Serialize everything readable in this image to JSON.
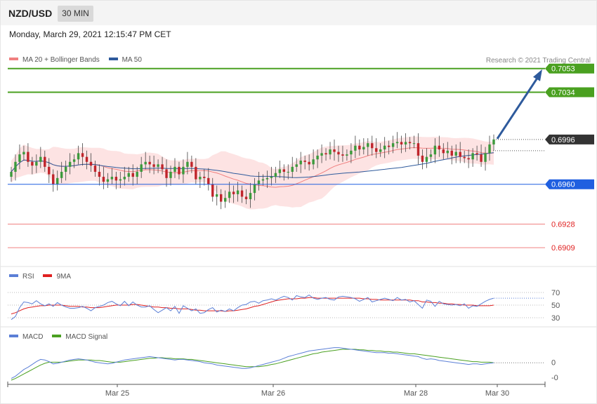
{
  "header": {
    "symbol": "NZD/USD",
    "timeframe": "30 MIN"
  },
  "datetime": "Monday, March 29, 2021 12:15:47 PM CET",
  "credit": "Research © 2021 Trading Central",
  "legends": {
    "price": [
      {
        "label": "MA 20 + Bollinger Bands",
        "color": "#f08080"
      },
      {
        "label": "MA 50",
        "color": "#2e5a9c"
      }
    ],
    "rsi": [
      {
        "label": "RSI",
        "color": "#5b7fd6"
      },
      {
        "label": "9MA",
        "color": "#e02020"
      }
    ],
    "macd": [
      {
        "label": "MACD",
        "color": "#5b7fd6"
      },
      {
        "label": "MACD Signal",
        "color": "#4aa020"
      }
    ]
  },
  "colors": {
    "up": "#3c9a3c",
    "down": "#c0242b",
    "target": "#4aa020",
    "pivot": "#1f5fe0",
    "support": "#e02020",
    "current": "#333333",
    "arrow": "#2e5a9c"
  },
  "chart_data": [
    {
      "type": "candlestick",
      "name": "price",
      "ylim": [
        0.6895,
        0.7063
      ],
      "x_ticks": [
        "Mar 25",
        "Mar 26",
        "Mar 28",
        "Mar 30"
      ],
      "levels": [
        {
          "value": 0.7053,
          "label": "0.7053",
          "role": "target"
        },
        {
          "value": 0.7034,
          "label": "0.7034",
          "role": "target"
        },
        {
          "value": 0.6996,
          "label": "0.6996",
          "role": "current"
        },
        {
          "value": 0.696,
          "label": "0.6960",
          "role": "pivot"
        },
        {
          "value": 0.6928,
          "label": "0.6928",
          "role": "support"
        },
        {
          "value": 0.6909,
          "label": "0.6909",
          "role": "support"
        }
      ],
      "arrow": {
        "from": 0.6996,
        "to": 0.7053
      },
      "close": [
        0.697,
        0.6978,
        0.6984,
        0.6986,
        0.6978,
        0.6975,
        0.6978,
        0.6982,
        0.6974,
        0.6968,
        0.696,
        0.6965,
        0.697,
        0.6974,
        0.6978,
        0.698,
        0.6985,
        0.6982,
        0.6978,
        0.6975,
        0.697,
        0.6966,
        0.6962,
        0.6964,
        0.6966,
        0.6963,
        0.6964,
        0.6966,
        0.6969,
        0.6966,
        0.697,
        0.6976,
        0.6978,
        0.6976,
        0.6974,
        0.6976,
        0.6972,
        0.6965,
        0.697,
        0.6974,
        0.6968,
        0.6974,
        0.6978,
        0.6974,
        0.6964,
        0.6966,
        0.6965,
        0.696,
        0.695,
        0.6952,
        0.6946,
        0.6949,
        0.6954,
        0.6952,
        0.6955,
        0.695,
        0.6948,
        0.6953,
        0.696,
        0.6963,
        0.6964,
        0.6965,
        0.6966,
        0.6969,
        0.6972,
        0.697,
        0.697,
        0.6974,
        0.6976,
        0.6979,
        0.6978,
        0.6976,
        0.698,
        0.6983,
        0.6985,
        0.6984,
        0.6988,
        0.6986,
        0.6984,
        0.6983,
        0.6984,
        0.6987,
        0.6991,
        0.6988,
        0.699,
        0.6993,
        0.6989,
        0.6986,
        0.6988,
        0.6991,
        0.699,
        0.6993,
        0.6994,
        0.6992,
        0.6994,
        0.6993,
        0.6993,
        0.6983,
        0.6978,
        0.6982,
        0.6984,
        0.6991,
        0.6988,
        0.6985,
        0.6987,
        0.6983,
        0.6986,
        0.6982,
        0.6981,
        0.698,
        0.6985,
        0.6984,
        0.6978,
        0.6985,
        0.6992,
        0.6996
      ]
    },
    {
      "type": "line",
      "name": "RSI",
      "ylim": [
        20,
        80
      ],
      "y_ticks": [
        "70",
        "50",
        "30"
      ],
      "reference_lines": [
        70,
        50,
        30
      ],
      "rsi": [
        27,
        32,
        46,
        55,
        54,
        52,
        57,
        52,
        49,
        52,
        48,
        54,
        50,
        47,
        45,
        45,
        46,
        48,
        45,
        41,
        46,
        48,
        50,
        54,
        56,
        52,
        49,
        56,
        49,
        55,
        50,
        47,
        47,
        49,
        43,
        38,
        42,
        46,
        41,
        48,
        37,
        49,
        45,
        41,
        44,
        37,
        38,
        43,
        46,
        39,
        42,
        40,
        44,
        41,
        46,
        50,
        51,
        55,
        56,
        53,
        57,
        58,
        60,
        58,
        61,
        64,
        62,
        58,
        65,
        63,
        62,
        66,
        61,
        59,
        61,
        62,
        59,
        58,
        63,
        64,
        63,
        62,
        60,
        56,
        59,
        62,
        55,
        57,
        59,
        61,
        59,
        57,
        62,
        58,
        59,
        55,
        57,
        51,
        45,
        58,
        56,
        48,
        56,
        52,
        51,
        50,
        51,
        49,
        52,
        45,
        49,
        48,
        52,
        56,
        59,
        61
      ],
      "rsi_ma": [
        36,
        38,
        41,
        44,
        46,
        47,
        48,
        49,
        49,
        50,
        50,
        50,
        50,
        49,
        48,
        48,
        48,
        47,
        47,
        46,
        46,
        46,
        47,
        48,
        49,
        50,
        50,
        50,
        50,
        51,
        51,
        50,
        49,
        48,
        47,
        47,
        46,
        46,
        45,
        45,
        44,
        44,
        44,
        43,
        42,
        42,
        41,
        41,
        41,
        41,
        41,
        40,
        41,
        41,
        42,
        43,
        44,
        46,
        48,
        49,
        51,
        53,
        55,
        57,
        58,
        59,
        60,
        60,
        60,
        61,
        61,
        62,
        62,
        61,
        61,
        61,
        61,
        61,
        61,
        61,
        61,
        61,
        61,
        61,
        60,
        60,
        59,
        59,
        58,
        58,
        58,
        58,
        58,
        58,
        58,
        58,
        57,
        57,
        55,
        55,
        54,
        54,
        53,
        53,
        52,
        52,
        51,
        51,
        50,
        50,
        50,
        49,
        49,
        49,
        49,
        50
      ]
    },
    {
      "type": "line",
      "name": "MACD",
      "y_ticks": [
        "0",
        "-0"
      ],
      "macd": [
        -22,
        -18,
        -12,
        -6,
        -2,
        3,
        8,
        12,
        11,
        8,
        4,
        5,
        7,
        9,
        11,
        12,
        13,
        12,
        11,
        9,
        7,
        6,
        5,
        4,
        5,
        7,
        9,
        11,
        12,
        13,
        14,
        15,
        16,
        17,
        16,
        15,
        14,
        13,
        12,
        11,
        12,
        12,
        11,
        10,
        9,
        8,
        6,
        5,
        4,
        2,
        1,
        0,
        -1,
        -2,
        -3,
        -4,
        -4,
        -3,
        -1,
        1,
        3,
        5,
        7,
        9,
        11,
        14,
        17,
        19,
        21,
        23,
        25,
        27,
        28,
        29,
        30,
        31,
        32,
        33,
        33,
        32,
        31,
        30,
        29,
        28,
        27,
        26,
        25,
        24,
        24,
        24,
        23,
        23,
        22,
        21,
        20,
        19,
        18,
        17,
        14,
        12,
        13,
        12,
        10,
        9,
        8,
        7,
        6,
        5,
        4,
        3,
        4,
        4,
        3,
        4,
        5,
        6
      ],
      "signal": [
        -25,
        -22,
        -18,
        -14,
        -10,
        -6,
        -2,
        2,
        5,
        7,
        7,
        7,
        7,
        8,
        9,
        10,
        11,
        11,
        11,
        11,
        10,
        10,
        9,
        8,
        7,
        7,
        7,
        8,
        9,
        10,
        11,
        12,
        13,
        14,
        14,
        15,
        15,
        14,
        14,
        13,
        13,
        13,
        12,
        12,
        11,
        10,
        9,
        8,
        7,
        6,
        5,
        4,
        3,
        2,
        1,
        0,
        -1,
        -1,
        -1,
        -1,
        0,
        1,
        3,
        4,
        6,
        8,
        10,
        12,
        14,
        16,
        18,
        20,
        22,
        23,
        25,
        26,
        27,
        28,
        29,
        30,
        30,
        30,
        30,
        29,
        29,
        28,
        28,
        27,
        27,
        26,
        26,
        25,
        25,
        24,
        23,
        22,
        22,
        21,
        20,
        19,
        18,
        17,
        16,
        15,
        14,
        13,
        12,
        11,
        10,
        9,
        8,
        8,
        7,
        7,
        7,
        6
      ]
    }
  ]
}
